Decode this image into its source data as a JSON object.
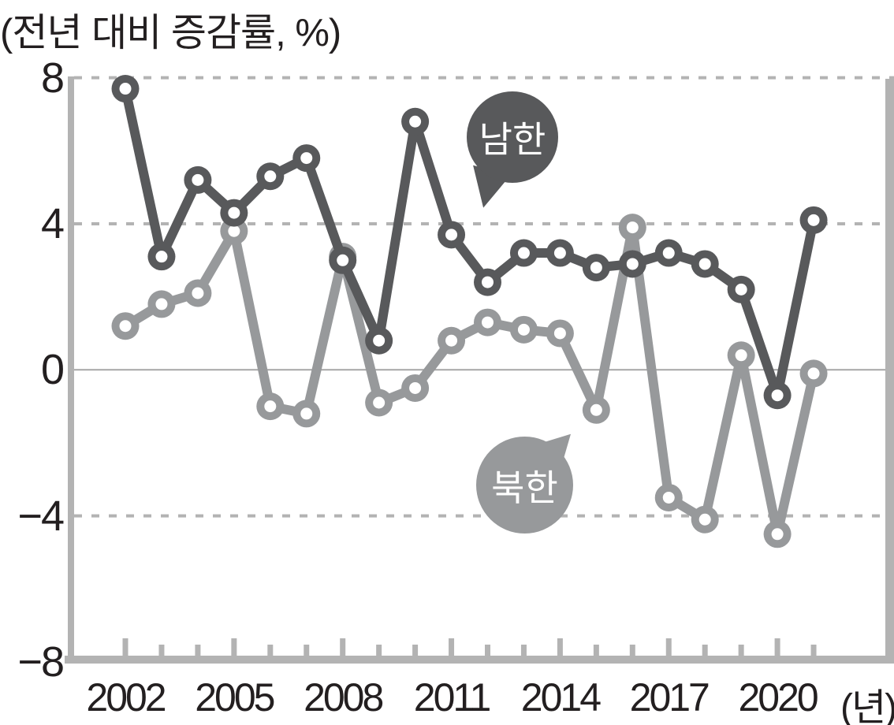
{
  "chart_data": {
    "type": "line",
    "title": "(전년 대비 증감률, %)",
    "x_unit_label": "(년)",
    "years": [
      2002,
      2003,
      2004,
      2005,
      2006,
      2007,
      2008,
      2009,
      2010,
      2011,
      2012,
      2013,
      2014,
      2015,
      2016,
      2017,
      2018,
      2019,
      2020,
      2021
    ],
    "x_ticks_labeled": [
      {
        "year": 2002,
        "label": "2002"
      },
      {
        "year": 2005,
        "label": "2005"
      },
      {
        "year": 2008,
        "label": "2008"
      },
      {
        "year": 2011,
        "label": "2011"
      },
      {
        "year": 2014,
        "label": "2014"
      },
      {
        "year": 2017,
        "label": "2017"
      },
      {
        "year": 2020,
        "label": "2020"
      }
    ],
    "y_ticks": [
      {
        "label": "8",
        "value": 8,
        "gridline": "dashed"
      },
      {
        "label": "4",
        "value": 4,
        "gridline": "dashed"
      },
      {
        "label": "0",
        "value": 0,
        "gridline": "solid"
      },
      {
        "label": "−4",
        "value": -4,
        "gridline": "dashed"
      },
      {
        "label": "−8",
        "value": -8,
        "gridline": "none"
      }
    ],
    "ylim": [
      -8,
      8
    ],
    "legend_position": "callout-bubbles-on-plot",
    "grid": "horizontal dashed at 8, 4, -4; thin solid at 0; no vertical grid",
    "series": [
      {
        "name": "남한",
        "color": "#58595b",
        "values": [
          7.7,
          3.1,
          5.2,
          4.3,
          5.3,
          5.8,
          3.0,
          0.8,
          6.8,
          3.7,
          2.4,
          3.2,
          3.2,
          2.8,
          2.9,
          3.2,
          2.9,
          2.2,
          -0.7,
          4.1
        ]
      },
      {
        "name": "북한",
        "color": "#97999b",
        "values": [
          1.2,
          1.8,
          2.1,
          3.8,
          -1.0,
          -1.2,
          3.1,
          -0.9,
          -0.5,
          0.8,
          1.3,
          1.1,
          1.0,
          -1.1,
          3.9,
          -3.5,
          -4.1,
          0.4,
          -4.5,
          -0.1
        ]
      }
    ]
  },
  "colors": {
    "south_series": "#58595b",
    "north_series": "#97999b",
    "axis_frame": "#b3b3b3",
    "dashed_gridline": "#b3b3b3",
    "zero_line": "#a6a6a6",
    "text": "#231f20",
    "background": "#ffffff",
    "marker_hole": "#ffffff"
  }
}
